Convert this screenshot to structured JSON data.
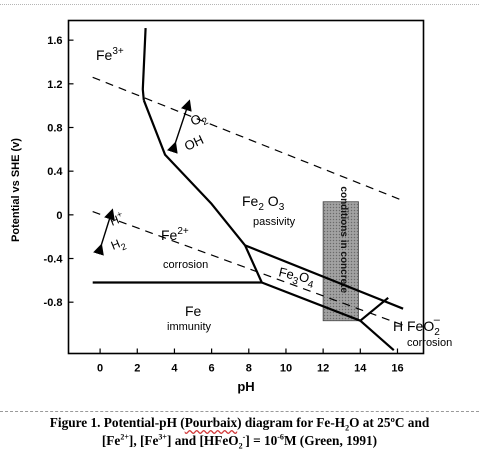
{
  "chart_data": {
    "type": "diagram",
    "xlabel": "pH",
    "ylabel": "Potential vs SHE (v)",
    "xlim": [
      -1.7,
      17.4
    ],
    "ylim": [
      -1.27,
      1.78
    ],
    "x_ticks": [
      "0",
      "2",
      "4",
      "6",
      "8",
      "10",
      "12",
      "14",
      "16"
    ],
    "x_tick_values": [
      0,
      2,
      4,
      6,
      8,
      10,
      12,
      14,
      16
    ],
    "y_ticks": [
      "1.6",
      "1.2",
      "0.8",
      "0.4",
      "0",
      "-0.4",
      "-0.8"
    ],
    "y_tick_values": [
      1.6,
      1.2,
      0.8,
      0.4,
      0,
      -0.4,
      -0.8
    ],
    "boundaries": [
      {
        "id": "fe3-fe2-vertical",
        "points": [
          [
            2.45,
            1.71
          ],
          [
            2.3,
            1.15
          ],
          [
            2.35,
            1.05
          ]
        ]
      },
      {
        "id": "fe2-fe2o3",
        "points": [
          [
            2.35,
            1.05
          ],
          [
            3.5,
            0.55
          ],
          [
            6.0,
            0.1
          ],
          [
            7.8,
            -0.28
          ]
        ]
      },
      {
        "id": "fe2o3-fe3o4-lower",
        "points": [
          [
            7.8,
            -0.28
          ],
          [
            8.7,
            -0.62
          ],
          [
            14.0,
            -0.97
          ]
        ]
      },
      {
        "id": "fe2o3-fe3o4-upper",
        "points": [
          [
            7.8,
            -0.28
          ],
          [
            16.3,
            -0.86
          ]
        ]
      },
      {
        "id": "fe-fe2-horizontal",
        "points": [
          [
            -0.4,
            -0.62
          ],
          [
            8.7,
            -0.62
          ]
        ]
      },
      {
        "id": "fe-hfeo2",
        "points": [
          [
            14.0,
            -0.97
          ],
          [
            15.8,
            -1.24
          ]
        ]
      },
      {
        "id": "fe3o4-hfeo2",
        "points": [
          [
            14.0,
            -0.97
          ],
          [
            15.5,
            -0.76
          ]
        ]
      }
    ],
    "water_lines": [
      {
        "id": "o2-oh-line",
        "points": [
          [
            -0.4,
            1.26
          ],
          [
            16.3,
            0.13
          ]
        ]
      },
      {
        "id": "h2-line",
        "points": [
          [
            -0.4,
            0.03
          ],
          [
            16.3,
            -1.01
          ]
        ]
      }
    ],
    "shaded_region": {
      "label": "conditions in concrete",
      "ph_range": [
        12.0,
        13.9
      ],
      "e_range": [
        -0.97,
        0.12
      ]
    },
    "regions": [
      {
        "id": "fe3",
        "label": "Fe",
        "charge": "3+"
      },
      {
        "id": "fe2",
        "label": "Fe",
        "charge": "2+",
        "sub": "corrosion"
      },
      {
        "id": "fe2o3",
        "label_parts": [
          "Fe",
          "2",
          " O",
          "3"
        ],
        "sub": "passivity"
      },
      {
        "id": "fe3o4",
        "label_parts": [
          "Fe",
          "3",
          "O",
          "4"
        ]
      },
      {
        "id": "fe",
        "label": "Fe",
        "sub": "immunity"
      },
      {
        "id": "hfeo2",
        "label_parts": [
          "H FeO",
          "2"
        ],
        "charge": "–",
        "sub": "corrosion"
      }
    ],
    "annotations": [
      {
        "id": "o2-label",
        "label": "O",
        "sub": "2"
      },
      {
        "id": "oh-label",
        "label": "OH"
      },
      {
        "id": "hplus-label",
        "label": "H",
        "charge": "+"
      },
      {
        "id": "h2-label",
        "label": "H",
        "sub": "2"
      }
    ]
  },
  "caption": {
    "line1_prefix": "Figure 1. Potential-pH (",
    "line1_wavy": "Pourbaix",
    "line1_suffix": ") diagram for Fe-H",
    "line1_sub": "2",
    "line1_end": "O at 25ºC and",
    "line2_a": "[Fe",
    "line2_sup1": "2+",
    "line2_b": "], [Fe",
    "line2_sup2": "3+",
    "line2_c": "] and [HFeO",
    "line2_sub": "2",
    "line2_sup3": "-",
    "line2_d": "] = 10",
    "line2_sup4": "-6",
    "line2_e": "M (Green, 1991)"
  }
}
